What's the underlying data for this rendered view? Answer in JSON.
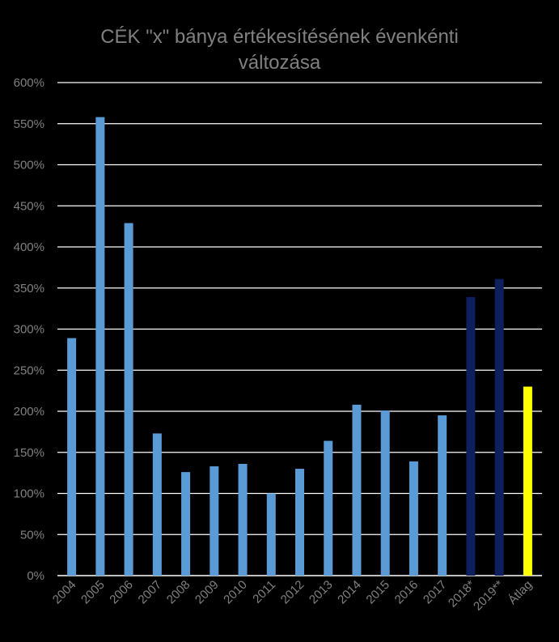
{
  "chart_data": {
    "type": "bar",
    "title_line1": "CÉK \"x\" bánya értékesítésének évenkénti",
    "title_line2": "változása",
    "categories": [
      "2004",
      "2005",
      "2006",
      "2007",
      "2008",
      "2009",
      "2010",
      "2011",
      "2012",
      "2013",
      "2014",
      "2015",
      "2016",
      "2017",
      "2018*",
      "2019**",
      "Átlag"
    ],
    "values": [
      289,
      558,
      429,
      173,
      126,
      133,
      136,
      100,
      130,
      164,
      208,
      201,
      139,
      195,
      339,
      361,
      230
    ],
    "bar_colors": [
      "#5b9bd5",
      "#5b9bd5",
      "#5b9bd5",
      "#5b9bd5",
      "#5b9bd5",
      "#5b9bd5",
      "#5b9bd5",
      "#5b9bd5",
      "#5b9bd5",
      "#5b9bd5",
      "#5b9bd5",
      "#5b9bd5",
      "#5b9bd5",
      "#5b9bd5",
      "#0d1f5c",
      "#0d1f5c",
      "#ffff00"
    ],
    "yticks": [
      "0%",
      "50%",
      "100%",
      "150%",
      "200%",
      "250%",
      "300%",
      "350%",
      "400%",
      "450%",
      "500%",
      "550%",
      "600%"
    ],
    "ylim": [
      0,
      600
    ],
    "grid": true,
    "colors": {
      "background": "#000000",
      "grid": "#ffffff",
      "text": "#808080"
    }
  }
}
